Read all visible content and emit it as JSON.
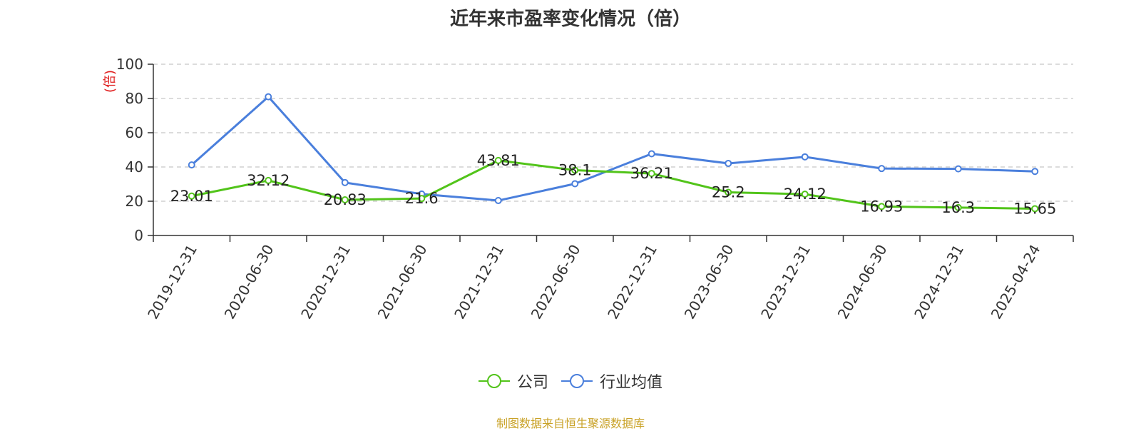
{
  "title": "近年来市盈率变化情况（倍）",
  "footer": "制图数据来自恒生聚源数据库",
  "chart_data": {
    "type": "line",
    "title": "近年来市盈率变化情况（倍）",
    "ylabel": "(倍)",
    "ylim": [
      0,
      100
    ],
    "yticks": [
      0,
      20,
      40,
      60,
      80,
      100
    ],
    "grid": true,
    "legend_position": "bottom-center",
    "categories": [
      "2019-12-31",
      "2020-06-30",
      "2020-12-31",
      "2021-06-30",
      "2021-12-31",
      "2022-06-30",
      "2022-12-31",
      "2023-06-30",
      "2023-12-31",
      "2024-06-30",
      "2024-12-31",
      "2025-04-24"
    ],
    "series": [
      {
        "name": "公司",
        "color": "#52c41a",
        "show_labels": true,
        "values": [
          23.01,
          32.12,
          20.83,
          21.6,
          43.81,
          38.1,
          36.21,
          25.2,
          24.12,
          16.93,
          16.3,
          15.65
        ]
      },
      {
        "name": "行业均值",
        "color": "#4a7fdc",
        "show_labels": false,
        "values": [
          41.2,
          81.0,
          30.9,
          24.2,
          20.4,
          30.2,
          47.7,
          42.1,
          45.9,
          39.1,
          38.9,
          37.4
        ]
      }
    ]
  }
}
